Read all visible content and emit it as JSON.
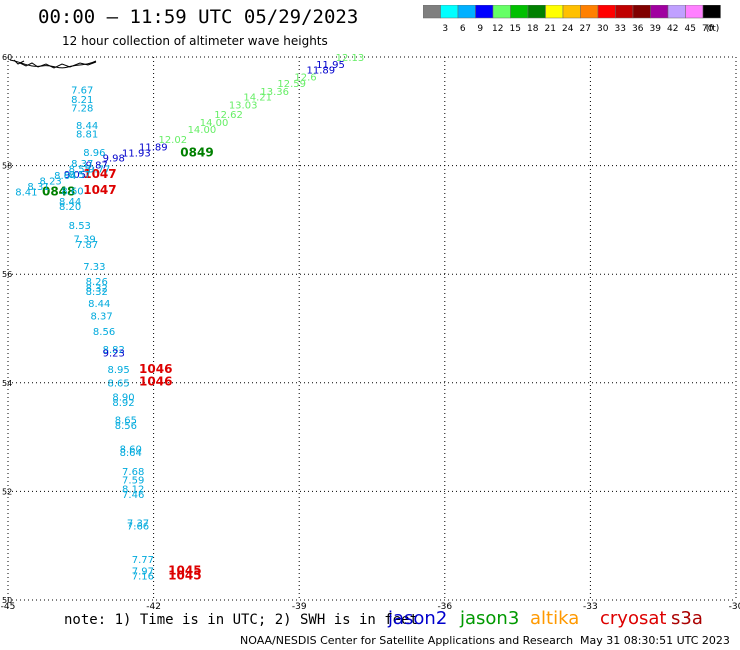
{
  "title": "00:00 — 11:59 UTC 05/29/2023",
  "subtitle": "12 hour collection of altimeter wave heights",
  "colorbar": {
    "colors": [
      "#7f7f7f",
      "#00ffff",
      "#00b0ff",
      "#0000ff",
      "#66ff66",
      "#00c000",
      "#008000",
      "#ffff00",
      "#ffc000",
      "#ff8000",
      "#ff0000",
      "#c00000",
      "#800000",
      "#a000a0",
      "#c0a0ff",
      "#ff80ff",
      "#000000"
    ],
    "labels": [
      "3",
      "6",
      "9",
      "12",
      "15",
      "18",
      "21",
      "24",
      "27",
      "30",
      "33",
      "36",
      "39",
      "42",
      "45",
      "70"
    ],
    "unit_label": "(ft)"
  },
  "footer": {
    "note": "note: 1) Time is in UTC; 2) SWH is in feet",
    "satellites": [
      {
        "name": "jason2",
        "color": "#0000cc"
      },
      {
        "name": "jason3",
        "color": "#009900"
      },
      {
        "name": "altika",
        "color": "#ff9900"
      },
      {
        "name": "cryosat",
        "color": "#dd0000"
      },
      {
        "name": "s3a",
        "color": "#aa0000"
      }
    ],
    "credit": "NOAA/NESDIS Center for Satellite Applications and Research",
    "timestamp": "May 31 08:30:51 UTC 2023"
  },
  "map": {
    "lon_ticks": [
      -45,
      -42,
      -39,
      -36,
      -33,
      -30
    ],
    "lat_ticks": [
      50,
      52,
      54,
      56,
      58,
      60
    ],
    "lon_range": [
      -45,
      -30
    ],
    "lat_range": [
      50,
      60
    ],
    "tick_labels_x": [
      "-45",
      "-42",
      "-39",
      "-36",
      "-33",
      "-30"
    ],
    "tick_labels_y": [
      "50",
      "52",
      "54",
      "56",
      "58",
      "60"
    ],
    "grid": "dotted",
    "wave_labels": [
      {
        "lon": -38.25,
        "lat": 59.93,
        "text": "12.13",
        "color": "#66ee66"
      },
      {
        "lon": -38.65,
        "lat": 59.8,
        "text": "11.95",
        "color": "#0000cc"
      },
      {
        "lon": -38.85,
        "lat": 59.7,
        "text": "11.89",
        "color": "#0000cc"
      },
      {
        "lon": -39.1,
        "lat": 59.57,
        "text": "12.6",
        "color": "#66ee66"
      },
      {
        "lon": -39.45,
        "lat": 59.45,
        "text": "12.59",
        "color": "#66ee66"
      },
      {
        "lon": -39.8,
        "lat": 59.3,
        "text": "13.36",
        "color": "#66ee66"
      },
      {
        "lon": -40.15,
        "lat": 59.2,
        "text": "14.21",
        "color": "#66ee66"
      },
      {
        "lon": -40.45,
        "lat": 59.05,
        "text": "13.03",
        "color": "#66ee66"
      },
      {
        "lon": -40.75,
        "lat": 58.88,
        "text": "12.62",
        "color": "#66ee66"
      },
      {
        "lon": -41.05,
        "lat": 58.73,
        "text": "14.00",
        "color": "#66ee66"
      },
      {
        "lon": -41.3,
        "lat": 58.6,
        "text": "14.00",
        "color": "#66ee66"
      },
      {
        "lon": -41.9,
        "lat": 58.42,
        "text": "12.02",
        "color": "#66ee66"
      },
      {
        "lon": -42.3,
        "lat": 58.28,
        "text": "11.89",
        "color": "#0000cc"
      },
      {
        "lon": -42.65,
        "lat": 58.17,
        "text": "11.93",
        "color": "#0000cc"
      },
      {
        "lon": -43.05,
        "lat": 58.08,
        "text": "9.98",
        "color": "#0000cc"
      },
      {
        "lon": -43.4,
        "lat": 57.95,
        "text": "9.87",
        "color": "#0000cc"
      },
      {
        "lon": -43.85,
        "lat": 57.77,
        "text": "9.05",
        "color": "#0000cc"
      },
      {
        "lon": -41.45,
        "lat": 58.17,
        "text": "0849",
        "color": "#008000"
      },
      {
        "lon": -43.45,
        "lat": 57.77,
        "text": "1047",
        "color": "#dd0000"
      },
      {
        "lon": -43.45,
        "lat": 57.48,
        "text": "1047",
        "color": "#dd0000"
      },
      {
        "lon": -44.3,
        "lat": 57.45,
        "text": "0848",
        "color": "#008000"
      },
      {
        "lon": -43.7,
        "lat": 59.33,
        "text": "7.67",
        "color": "#00aadd"
      },
      {
        "lon": -43.7,
        "lat": 59.15,
        "text": "8.21",
        "color": "#00aadd"
      },
      {
        "lon": -43.7,
        "lat": 59.0,
        "text": "7.28",
        "color": "#00aadd"
      },
      {
        "lon": -43.6,
        "lat": 58.67,
        "text": "8.44",
        "color": "#00aadd"
      },
      {
        "lon": -43.6,
        "lat": 58.52,
        "text": "8.81",
        "color": "#00aadd"
      },
      {
        "lon": -43.45,
        "lat": 58.18,
        "text": "8.96",
        "color": "#00aadd"
      },
      {
        "lon": -43.7,
        "lat": 57.97,
        "text": "8.37",
        "color": "#00aadd"
      },
      {
        "lon": -43.75,
        "lat": 57.87,
        "text": "8.55",
        "color": "#00aadd"
      },
      {
        "lon": -43.35,
        "lat": 57.87,
        "text": "9.77",
        "color": "#00aadd"
      },
      {
        "lon": -43.75,
        "lat": 57.77,
        "text": "8.57",
        "color": "#00aadd"
      },
      {
        "lon": -44.05,
        "lat": 57.75,
        "text": "8.64",
        "color": "#00aadd"
      },
      {
        "lon": -44.35,
        "lat": 57.65,
        "text": "8.23",
        "color": "#00aadd"
      },
      {
        "lon": -44.6,
        "lat": 57.55,
        "text": "8.31",
        "color": "#00aadd"
      },
      {
        "lon": -44.85,
        "lat": 57.45,
        "text": "8.41",
        "color": "#00aadd"
      },
      {
        "lon": -43.9,
        "lat": 57.47,
        "text": "8.60",
        "color": "#00aadd"
      },
      {
        "lon": -43.95,
        "lat": 57.27,
        "text": "8.44",
        "color": "#00aadd"
      },
      {
        "lon": -43.95,
        "lat": 57.18,
        "text": "8.20",
        "color": "#00aadd"
      },
      {
        "lon": -43.75,
        "lat": 56.83,
        "text": "8.53",
        "color": "#00aadd"
      },
      {
        "lon": -43.65,
        "lat": 56.58,
        "text": "7.39",
        "color": "#00aadd"
      },
      {
        "lon": -43.6,
        "lat": 56.48,
        "text": "7.87",
        "color": "#00aadd"
      },
      {
        "lon": -43.45,
        "lat": 56.08,
        "text": "7.33",
        "color": "#00aadd"
      },
      {
        "lon": -43.4,
        "lat": 55.8,
        "text": "8.26",
        "color": "#00aadd"
      },
      {
        "lon": -43.4,
        "lat": 55.68,
        "text": "8.32",
        "color": "#00aadd"
      },
      {
        "lon": -43.4,
        "lat": 55.62,
        "text": "8.32",
        "color": "#00aadd"
      },
      {
        "lon": -43.35,
        "lat": 55.4,
        "text": "8.44",
        "color": "#00aadd"
      },
      {
        "lon": -43.3,
        "lat": 55.17,
        "text": "8.37",
        "color": "#00aadd"
      },
      {
        "lon": -43.25,
        "lat": 54.88,
        "text": "8.56",
        "color": "#00aadd"
      },
      {
        "lon": -43.05,
        "lat": 54.55,
        "text": "8.82",
        "color": "#00aadd"
      },
      {
        "lon": -43.05,
        "lat": 54.48,
        "text": "9.23",
        "color": "#0000cc"
      },
      {
        "lon": -42.95,
        "lat": 54.18,
        "text": "8.95",
        "color": "#00aadd"
      },
      {
        "lon": -42.95,
        "lat": 53.93,
        "text": "8.65",
        "color": "#00aadd"
      },
      {
        "lon": -42.3,
        "lat": 54.18,
        "text": "1046",
        "color": "#dd0000"
      },
      {
        "lon": -42.3,
        "lat": 53.95,
        "text": "1046",
        "color": "#dd0000"
      },
      {
        "lon": -42.85,
        "lat": 53.67,
        "text": "8.90",
        "color": "#00aadd"
      },
      {
        "lon": -42.85,
        "lat": 53.57,
        "text": "8.92",
        "color": "#00aadd"
      },
      {
        "lon": -42.8,
        "lat": 53.25,
        "text": "8.65",
        "color": "#00aadd"
      },
      {
        "lon": -42.8,
        "lat": 53.15,
        "text": "8.56",
        "color": "#00aadd"
      },
      {
        "lon": -42.7,
        "lat": 52.72,
        "text": "8.60",
        "color": "#00aadd"
      },
      {
        "lon": -42.7,
        "lat": 52.65,
        "text": "8.64",
        "color": "#00aadd"
      },
      {
        "lon": -42.65,
        "lat": 52.3,
        "text": "7.68",
        "color": "#00aadd"
      },
      {
        "lon": -42.65,
        "lat": 52.15,
        "text": "7.59",
        "color": "#00aadd"
      },
      {
        "lon": -42.65,
        "lat": 51.98,
        "text": "8.12",
        "color": "#00aadd"
      },
      {
        "lon": -42.65,
        "lat": 51.88,
        "text": "7.46",
        "color": "#00aadd"
      },
      {
        "lon": -42.55,
        "lat": 51.35,
        "text": "7.37",
        "color": "#00aadd"
      },
      {
        "lon": -42.55,
        "lat": 51.3,
        "text": "7.66",
        "color": "#00aadd"
      },
      {
        "lon": -42.45,
        "lat": 50.68,
        "text": "7.77",
        "color": "#00aadd"
      },
      {
        "lon": -42.45,
        "lat": 50.47,
        "text": "7.97",
        "color": "#00aadd"
      },
      {
        "lon": -42.45,
        "lat": 50.38,
        "text": "7.16",
        "color": "#00aadd"
      },
      {
        "lon": -41.7,
        "lat": 50.47,
        "text": "1045",
        "color": "#dd0000"
      },
      {
        "lon": -41.7,
        "lat": 50.38,
        "text": "1045",
        "color": "#dd0000"
      }
    ]
  }
}
